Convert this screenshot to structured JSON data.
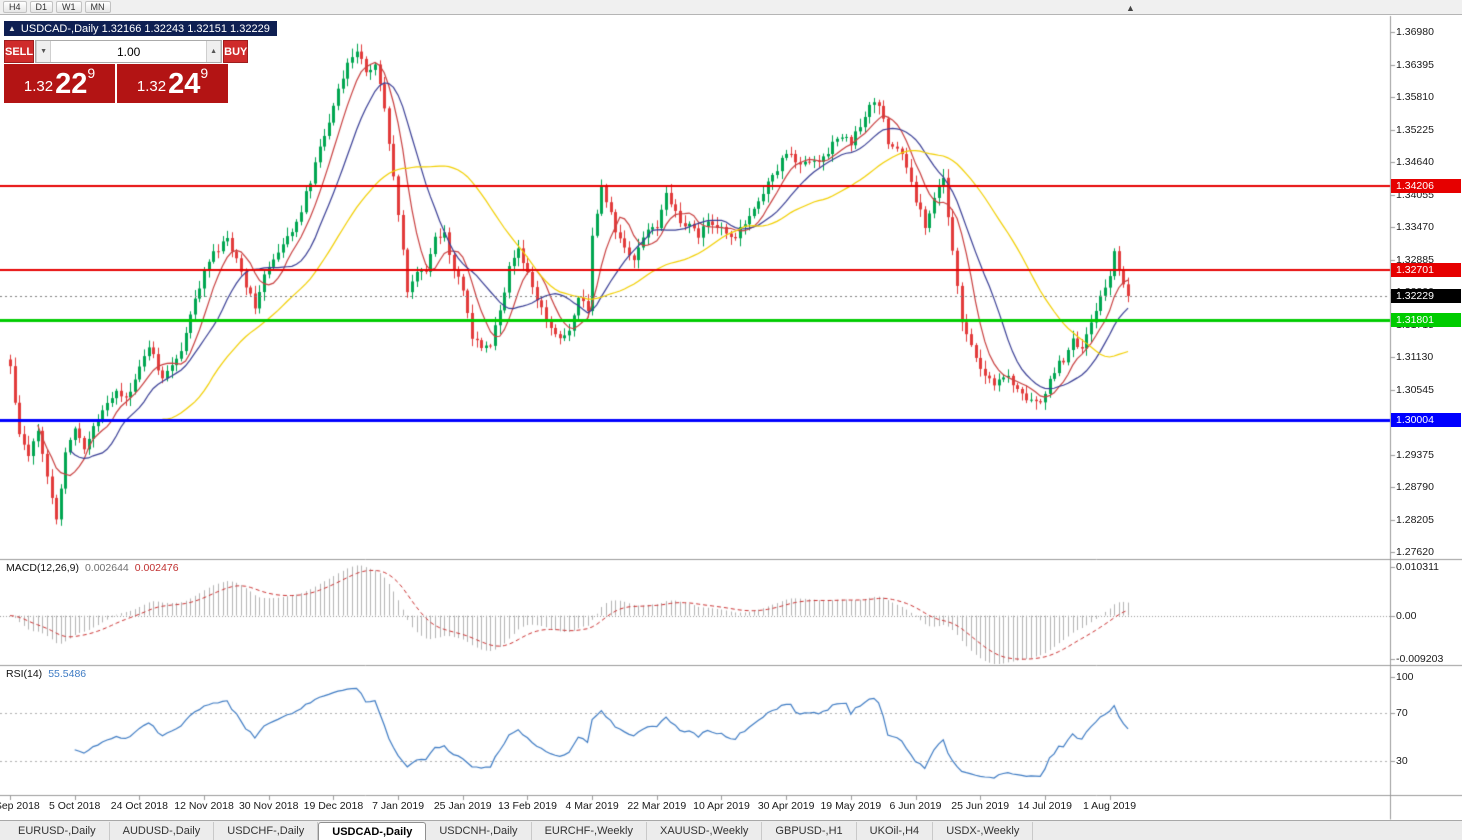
{
  "toolbar": {
    "timeframes": [
      "H4",
      "D1",
      "W1",
      "MN"
    ]
  },
  "icons": {
    "collapse": "▲",
    "volume_down": "▼",
    "volume_up": "▲",
    "shift_marker": "▲"
  },
  "symbol_bar": {
    "text": "USDCAD-,Daily 1.32166 1.32243 1.32151 1.32229"
  },
  "trade_panel": {
    "sell_label": "SELL",
    "buy_label": "BUY",
    "volume": "1.00",
    "bid": {
      "big": "1.32",
      "pips": "22",
      "pipette": "9"
    },
    "ask": {
      "big": "1.32",
      "pips": "24",
      "pipette": "9"
    }
  },
  "price_axis": {
    "labels": [
      "1.36980",
      "1.36395",
      "1.35810",
      "1.35225",
      "1.34640",
      "1.34055",
      "1.33470",
      "1.32885",
      "1.32300",
      "1.31715",
      "1.31130",
      "1.30545",
      "1.29960",
      "1.29375",
      "1.28790",
      "1.28205",
      "1.27620"
    ]
  },
  "hlines": [
    {
      "price": 1.34206,
      "label": "1.34206",
      "color": "#e60000",
      "width": 2
    },
    {
      "price": 1.32701,
      "label": "1.32701",
      "color": "#e60000",
      "width": 2
    },
    {
      "price": 1.31801,
      "label": "1.31801",
      "color": "#00cc00",
      "width": 3
    },
    {
      "price": 1.30004,
      "label": "1.30004",
      "color": "#0000ff",
      "width": 3
    }
  ],
  "current_price": {
    "value": 1.32229,
    "label": "1.32229",
    "color": "#000000"
  },
  "macd_panel": {
    "title": "MACD(12,26,9)",
    "value_main": "0.002644",
    "value_signal": "0.002476",
    "axis_labels": [
      "0.010311",
      "0.00",
      "-0.009203"
    ]
  },
  "rsi_panel": {
    "title": "RSI(14)",
    "value": "55.5486",
    "axis_labels": [
      "100",
      "70",
      "30"
    ],
    "levels": [
      70,
      30
    ]
  },
  "date_axis": {
    "labels": [
      "17 Sep 2018",
      "5 Oct 2018",
      "24 Oct 2018",
      "12 Nov 2018",
      "30 Nov 2018",
      "19 Dec 2018",
      "7 Jan 2019",
      "25 Jan 2019",
      "13 Feb 2019",
      "4 Mar 2019",
      "22 Mar 2019",
      "10 Apr 2019",
      "30 Apr 2019",
      "19 May 2019",
      "6 Jun 2019",
      "25 Jun 2019",
      "14 Jul 2019",
      "1 Aug 2019"
    ]
  },
  "tabs": [
    {
      "label": "EURUSD-,Daily",
      "active": false
    },
    {
      "label": "AUDUSD-,Daily",
      "active": false
    },
    {
      "label": "USDCHF-,Daily",
      "active": false
    },
    {
      "label": "USDCAD-,Daily",
      "active": true
    },
    {
      "label": "USDCNH-,Daily",
      "active": false
    },
    {
      "label": "EURCHF-,Weekly",
      "active": false
    },
    {
      "label": "XAUUSD-,Weekly",
      "active": false
    },
    {
      "label": "GBPUSD-,H1",
      "active": false
    },
    {
      "label": "UKOil-,H4",
      "active": false
    },
    {
      "label": "USDX-,Weekly",
      "active": false
    }
  ],
  "chart_data": {
    "type": "candlestick",
    "title": "USDCAD-,Daily",
    "symbol": "USDCAD",
    "period": "Daily",
    "ohlc": {
      "open": "1.32166",
      "high": "1.32243",
      "low": "1.32151",
      "close": "1.32229"
    },
    "bar_count": 243,
    "bars_per_date_tick": 14,
    "price_scale": {
      "top": 1.3698,
      "bottom": 1.2762,
      "step": 0.00585
    },
    "last_close": 1.32229,
    "close_anchors": [
      [
        0,
        1.3095
      ],
      [
        2,
        1.2975
      ],
      [
        4,
        1.294
      ],
      [
        6,
        1.2985
      ],
      [
        9,
        1.286
      ],
      [
        10,
        1.282
      ],
      [
        12,
        1.2935
      ],
      [
        14,
        1.299
      ],
      [
        16,
        1.2948
      ],
      [
        19,
        1.3
      ],
      [
        21,
        1.3035
      ],
      [
        23,
        1.3055
      ],
      [
        25,
        1.3035
      ],
      [
        28,
        1.309
      ],
      [
        30,
        1.3135
      ],
      [
        33,
        1.3072
      ],
      [
        35,
        1.31
      ],
      [
        37,
        1.3125
      ],
      [
        40,
        1.3215
      ],
      [
        42,
        1.327
      ],
      [
        44,
        1.3297
      ],
      [
        47,
        1.3325
      ],
      [
        49,
        1.3288
      ],
      [
        51,
        1.3243
      ],
      [
        53,
        1.3207
      ],
      [
        55,
        1.326
      ],
      [
        58,
        1.3297
      ],
      [
        61,
        1.3342
      ],
      [
        63,
        1.3378
      ],
      [
        65,
        1.3432
      ],
      [
        67,
        1.3486
      ],
      [
        69,
        1.354
      ],
      [
        71,
        1.3594
      ],
      [
        73,
        1.3648
      ],
      [
        75,
        1.366
      ],
      [
        77,
        1.363
      ],
      [
        79,
        1.364
      ],
      [
        81,
        1.3558
      ],
      [
        83,
        1.3432
      ],
      [
        85,
        1.3306
      ],
      [
        86,
        1.3234
      ],
      [
        88,
        1.3262
      ],
      [
        90,
        1.327
      ],
      [
        92,
        1.3324
      ],
      [
        94,
        1.3333
      ],
      [
        96,
        1.327
      ],
      [
        98,
        1.3234
      ],
      [
        100,
        1.315
      ],
      [
        102,
        1.3126
      ],
      [
        104,
        1.3135
      ],
      [
        106,
        1.3198
      ],
      [
        108,
        1.327
      ],
      [
        110,
        1.331
      ],
      [
        112,
        1.3262
      ],
      [
        114,
        1.3216
      ],
      [
        117,
        1.3162
      ],
      [
        119,
        1.3144
      ],
      [
        121,
        1.3162
      ],
      [
        123,
        1.3216
      ],
      [
        125,
        1.32
      ],
      [
        126,
        1.333
      ],
      [
        128,
        1.342
      ],
      [
        131,
        1.3342
      ],
      [
        133,
        1.3306
      ],
      [
        135,
        1.3288
      ],
      [
        137,
        1.3333
      ],
      [
        140,
        1.335
      ],
      [
        142,
        1.3405
      ],
      [
        145,
        1.336
      ],
      [
        147,
        1.335
      ],
      [
        149,
        1.3333
      ],
      [
        151,
        1.336
      ],
      [
        154,
        1.3342
      ],
      [
        156,
        1.3324
      ],
      [
        158,
        1.3342
      ],
      [
        160,
        1.336
      ],
      [
        162,
        1.3396
      ],
      [
        164,
        1.3423
      ],
      [
        167,
        1.3468
      ],
      [
        169,
        1.3477
      ],
      [
        171,
        1.3458
      ],
      [
        173,
        1.3468
      ],
      [
        175,
        1.3465
      ],
      [
        178,
        1.3495
      ],
      [
        180,
        1.351
      ],
      [
        182,
        1.35
      ],
      [
        184,
        1.353
      ],
      [
        186,
        1.356
      ],
      [
        188,
        1.357
      ],
      [
        190,
        1.35
      ],
      [
        193,
        1.348
      ],
      [
        196,
        1.3395
      ],
      [
        198,
        1.335
      ],
      [
        200,
        1.3405
      ],
      [
        202,
        1.343
      ],
      [
        204,
        1.33
      ],
      [
        206,
        1.318
      ],
      [
        208,
        1.313
      ],
      [
        210,
        1.3095
      ],
      [
        213,
        1.3065
      ],
      [
        216,
        1.308
      ],
      [
        219,
        1.3045
      ],
      [
        222,
        1.303
      ],
      [
        224,
        1.3045
      ],
      [
        226,
        1.309
      ],
      [
        228,
        1.311
      ],
      [
        230,
        1.314
      ],
      [
        232,
        1.313
      ],
      [
        234,
        1.318
      ],
      [
        236,
        1.322
      ],
      [
        238,
        1.326
      ],
      [
        239,
        1.331
      ],
      [
        240,
        1.327
      ],
      [
        241,
        1.324
      ],
      [
        242,
        1.32229
      ]
    ],
    "candle_up_color": "#00a651",
    "candle_down_color": "#e23b3b",
    "moving_averages": [
      {
        "period": 7,
        "color": "#c94040"
      },
      {
        "period": 14,
        "color": "#3a3f96"
      },
      {
        "period": 34,
        "color": "#f2cf00"
      }
    ],
    "macd": {
      "fast": 12,
      "slow": 26,
      "signal": 9,
      "hist_color": "#b4b4b4",
      "signal_color": "#cc3333",
      "scale_max": 0.010311,
      "scale_min": -0.009203
    },
    "rsi": {
      "period": 14,
      "color": "#3f7cc4",
      "last": 55.5486
    }
  }
}
